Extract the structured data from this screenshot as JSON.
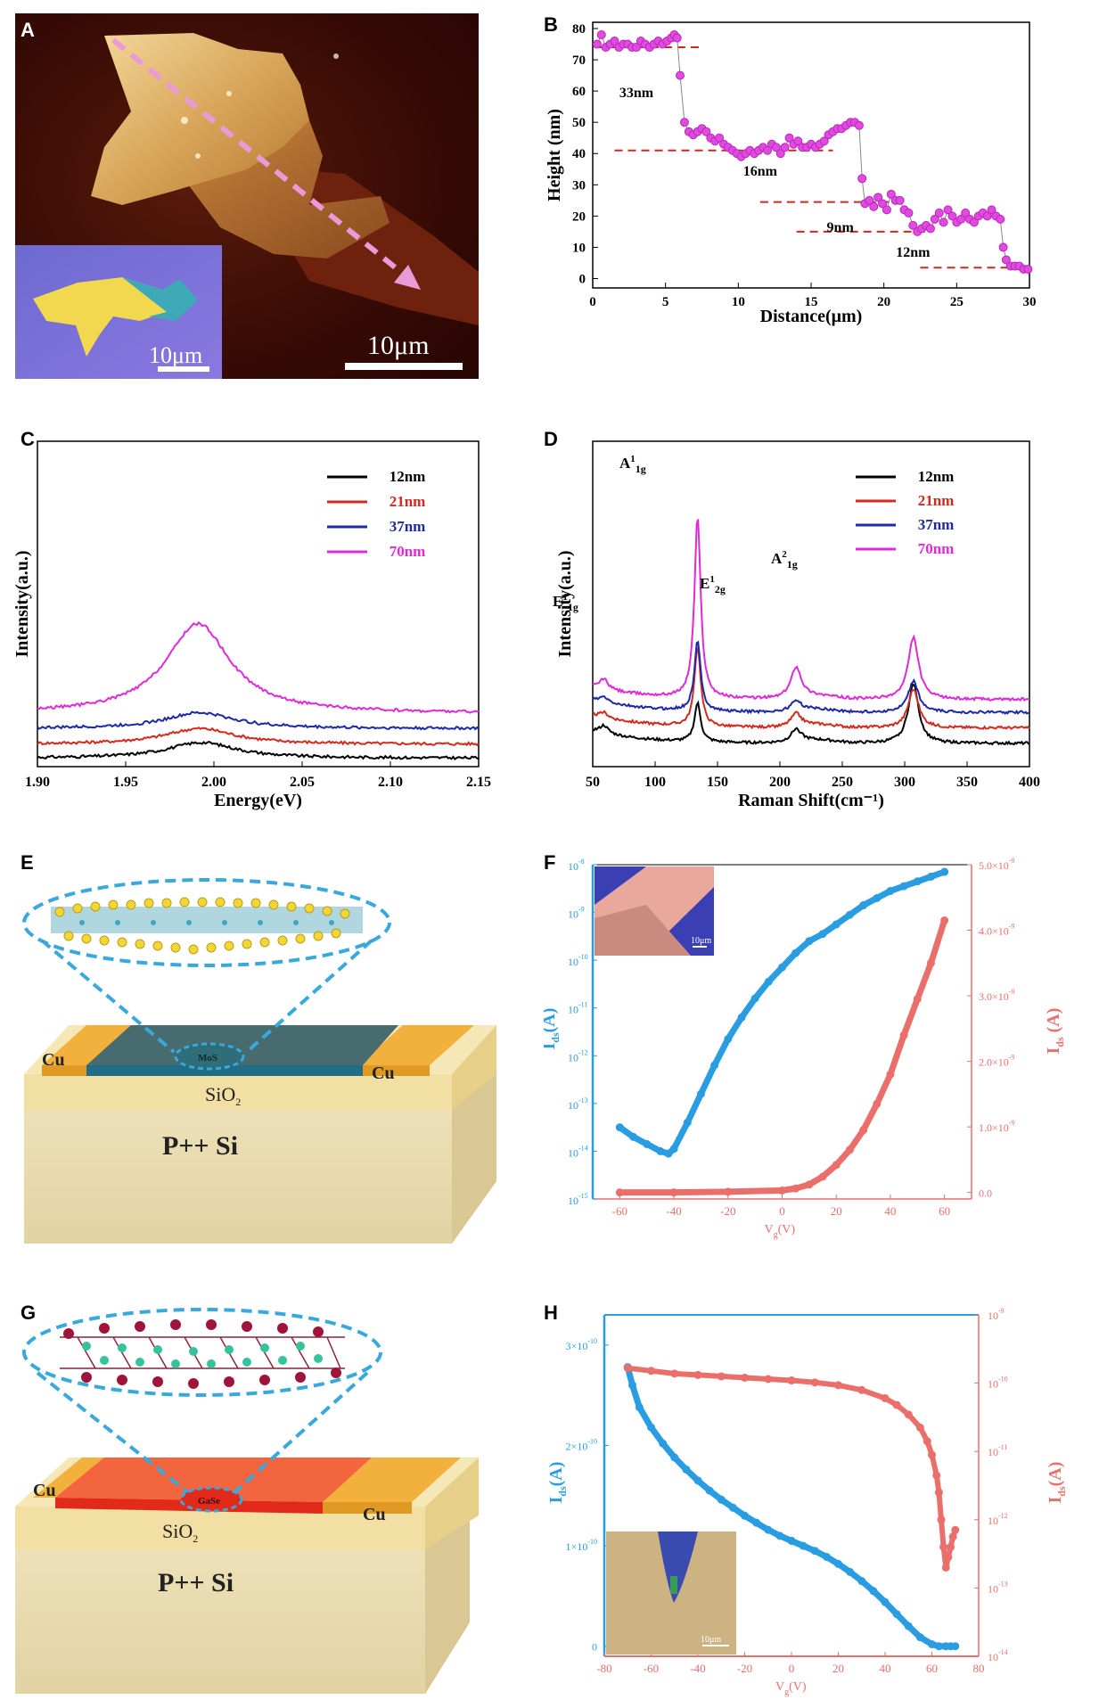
{
  "panels": {
    "A": {
      "label": "A",
      "inset_scale": "10μm",
      "main_scale": "10μm"
    },
    "B": {
      "label": "B",
      "annotations": [
        "33nm",
        "16nm",
        "9nm",
        "12nm"
      ]
    },
    "C": {
      "label": "C"
    },
    "D": {
      "label": "D",
      "peaks": [
        {
          "base": "E",
          "sup": "1",
          "sub": "1g"
        },
        {
          "base": "A",
          "sup": "1",
          "sub": "1g"
        },
        {
          "base": "E",
          "sup": "1",
          "sub": "2g"
        },
        {
          "base": "A",
          "sup": "2",
          "sub": "1g"
        }
      ]
    },
    "E": {
      "label": "E",
      "electrode_left": "Cu",
      "electrode_right": "Cu",
      "channel": "MoS",
      "oxide_base": "SiO",
      "oxide_sub": "2",
      "substrate": "P++ Si",
      "colors": {
        "channel": "#2f6d78",
        "electrode": "#f2b13c"
      }
    },
    "F": {
      "label": "F",
      "inset_scale": "10μm",
      "left_ylabel": {
        "base": "I",
        "sub": "ds",
        "rest": "(A)"
      },
      "right_ylabel": {
        "base": "I",
        "sub": "ds",
        "rest": " (A)"
      },
      "xlabel": {
        "base": "V",
        "sub": "g",
        "rest": "(V)"
      },
      "left_ticks": [
        {
          "mant": "10",
          "exp": "-8"
        },
        {
          "mant": "10",
          "exp": "-9"
        },
        {
          "mant": "10",
          "exp": "-10"
        },
        {
          "mant": "10",
          "exp": "-11"
        },
        {
          "mant": "10",
          "exp": "-12"
        },
        {
          "mant": "10",
          "exp": "-13"
        },
        {
          "mant": "10",
          "exp": "-14"
        },
        {
          "mant": "10",
          "exp": "-15"
        }
      ],
      "right_ticks": [
        {
          "mant": "5.0×10",
          "exp": "-9"
        },
        {
          "mant": "4.0×10",
          "exp": "-9"
        },
        {
          "mant": "3.0×10",
          "exp": "-9"
        },
        {
          "mant": "2.0×10",
          "exp": "-9"
        },
        {
          "mant": "1.0×10",
          "exp": "-9"
        },
        {
          "mant": "0.0",
          "exp": ""
        }
      ],
      "colors": {
        "blue": "#2a9de2",
        "red": "#ea6f6b"
      }
    },
    "G": {
      "label": "G",
      "electrode_left": "Cu",
      "electrode_right": "Cu",
      "channel": "GaSe",
      "oxide_base": "SiO",
      "oxide_sub": "2",
      "substrate": "P++ Si",
      "colors": {
        "channel": "#f2653e",
        "electrode": "#f2b13c"
      }
    },
    "H": {
      "label": "H",
      "inset_scale": "10μm",
      "left_ylabel": {
        "base": "I",
        "sub": "ds",
        "rest": "(A)"
      },
      "right_ylabel": {
        "base": "I",
        "sub": "ds",
        "rest": "(A)"
      },
      "xlabel": {
        "base": "V",
        "sub": "g",
        "rest": "(V)"
      },
      "left_ticks": [
        {
          "mant": "3×10",
          "exp": "-10"
        },
        {
          "mant": "2×10",
          "exp": "-10"
        },
        {
          "mant": "1×10",
          "exp": "-10"
        },
        {
          "mant": "0",
          "exp": ""
        }
      ],
      "right_ticks": [
        {
          "mant": "10",
          "exp": "-9"
        },
        {
          "mant": "10",
          "exp": "-10"
        },
        {
          "mant": "10",
          "exp": "-11"
        },
        {
          "mant": "10",
          "exp": "-12"
        },
        {
          "mant": "10",
          "exp": "-13"
        },
        {
          "mant": "10",
          "exp": "-14"
        }
      ]
    }
  },
  "chart_data": [
    {
      "id": "B",
      "type": "scatter",
      "title": "",
      "xlabel": "Distance(μm)",
      "ylabel": "Height (nm)",
      "xlim": [
        0,
        30
      ],
      "ylim": [
        -3,
        82
      ],
      "xticks": [
        0,
        5,
        10,
        15,
        20,
        25,
        30
      ],
      "yticks": [
        0,
        10,
        20,
        30,
        40,
        50,
        60,
        70,
        80
      ],
      "series": [
        {
          "name": "height",
          "x": [
            0.3,
            0.6,
            0.9,
            1.2,
            1.5,
            1.8,
            2.1,
            2.4,
            2.7,
            3.0,
            3.3,
            3.6,
            3.9,
            4.2,
            4.5,
            4.8,
            5.1,
            5.4,
            5.6,
            5.8,
            6.0,
            6.3,
            6.6,
            6.9,
            7.2,
            7.5,
            7.8,
            8.1,
            8.4,
            8.7,
            9.0,
            9.3,
            9.6,
            9.9,
            10.2,
            10.5,
            10.8,
            11.1,
            11.4,
            11.7,
            12.0,
            12.3,
            12.6,
            12.9,
            13.2,
            13.5,
            13.8,
            14.1,
            14.4,
            14.7,
            15.0,
            15.3,
            15.6,
            15.9,
            16.2,
            16.5,
            16.8,
            17.1,
            17.4,
            17.7,
            18.0,
            18.3,
            18.5,
            18.7,
            19.0,
            19.3,
            19.6,
            19.9,
            20.2,
            20.5,
            20.8,
            21.1,
            21.4,
            21.7,
            22.0,
            22.3,
            22.6,
            22.9,
            23.2,
            23.5,
            23.8,
            24.1,
            24.4,
            24.7,
            25.0,
            25.3,
            25.6,
            25.9,
            26.2,
            26.5,
            26.8,
            27.1,
            27.4,
            27.7,
            28.0,
            28.2,
            28.4,
            28.7,
            29.0,
            29.3,
            29.6,
            29.9
          ],
          "y": [
            75,
            78,
            74,
            75,
            76,
            74,
            75,
            75,
            74,
            74,
            76,
            75,
            74,
            75,
            76,
            75,
            76,
            77,
            78,
            77,
            65,
            50,
            47,
            46,
            47,
            48,
            47,
            45,
            44,
            45,
            43,
            42,
            41,
            40,
            39,
            40,
            41,
            40,
            41,
            42,
            41,
            43,
            42,
            40,
            42,
            45,
            43,
            44,
            42,
            42,
            43,
            42,
            43,
            44,
            46,
            47,
            48,
            48,
            49,
            50,
            50,
            49,
            32,
            24,
            25,
            23,
            26,
            24,
            22,
            27,
            25,
            25,
            22,
            21,
            17,
            15,
            16,
            17,
            16,
            19,
            21,
            18,
            22,
            20,
            18,
            19,
            21,
            19,
            18,
            20,
            21,
            20,
            22,
            20,
            19,
            10,
            6,
            4,
            4,
            4,
            3,
            3
          ]
        }
      ],
      "reference_lines": [
        74,
        41,
        24.5,
        15,
        3.5
      ],
      "annotations": [
        "33nm",
        "16nm",
        "9nm",
        "12nm"
      ]
    },
    {
      "id": "C",
      "type": "line",
      "xlabel": "Energy(eV)",
      "ylabel": "Intensity(a.u.)",
      "xlim": [
        1.9,
        2.15
      ],
      "xticks": [
        "1.90",
        "1.95",
        "2.00",
        "2.05",
        "2.10",
        "2.15"
      ],
      "ylim": [
        0,
        5.8
      ],
      "series": [
        {
          "name": "12nm",
          "color": "#000000",
          "baseline": 0.15,
          "amplitude": 0.28,
          "center": 1.993,
          "width": 0.024
        },
        {
          "name": "21nm",
          "color": "#d42a1e",
          "baseline": 0.4,
          "amplitude": 0.28,
          "center": 1.992,
          "width": 0.024
        },
        {
          "name": "37nm",
          "color": "#1c2aa8",
          "baseline": 0.68,
          "amplitude": 0.28,
          "center": 1.992,
          "width": 0.024
        },
        {
          "name": "70nm",
          "color": "#e02ad8",
          "baseline": 0.95,
          "amplitude": 1.6,
          "center": 1.991,
          "width": 0.022
        }
      ]
    },
    {
      "id": "D",
      "type": "line",
      "xlabel": "Raman Shift(cm⁻¹)",
      "ylabel": "Intensity(a.u.)",
      "xlim": [
        50,
        400
      ],
      "xticks": [
        50,
        100,
        150,
        200,
        250,
        300,
        350,
        400
      ],
      "ylim": [
        0,
        6.3
      ],
      "peak_positions_cm": [
        59,
        134,
        213,
        307
      ],
      "series": [
        {
          "name": "12nm",
          "color": "#000000",
          "baseline": 0.45,
          "peaks": [
            0.15,
            0.75,
            0.25,
            1.15
          ]
        },
        {
          "name": "21nm",
          "color": "#d42a1e",
          "baseline": 0.75,
          "peaks": [
            0.1,
            1.55,
            0.25,
            0.75
          ]
        },
        {
          "name": "37nm",
          "color": "#1c2aa8",
          "baseline": 1.05,
          "peaks": [
            0.1,
            1.35,
            0.2,
            0.6
          ]
        },
        {
          "name": "70nm",
          "color": "#e02ad8",
          "baseline": 1.3,
          "peaks": [
            0.2,
            3.5,
            0.6,
            1.2
          ]
        }
      ]
    },
    {
      "id": "F",
      "type": "line",
      "xlabel": "Vg(V)",
      "xlim": [
        -70,
        70
      ],
      "xticks": [
        -60,
        -40,
        -20,
        0,
        20,
        40,
        60
      ],
      "series": [
        {
          "name": "Ids log (left axis)",
          "axis": "left",
          "color": "#2a9de2",
          "x": [
            -60,
            -55,
            -50,
            -45,
            -42,
            -40,
            -35,
            -30,
            -25,
            -20,
            -15,
            -10,
            -5,
            0,
            5,
            10,
            15,
            20,
            25,
            30,
            35,
            40,
            45,
            50,
            55,
            60
          ],
          "log10_y": [
            -13.5,
            -13.7,
            -13.85,
            -14.0,
            -14.05,
            -13.95,
            -13.4,
            -12.8,
            -12.2,
            -11.65,
            -11.2,
            -10.8,
            -10.45,
            -10.15,
            -9.85,
            -9.6,
            -9.45,
            -9.25,
            -9.05,
            -8.85,
            -8.7,
            -8.55,
            -8.45,
            -8.35,
            -8.25,
            -8.15
          ]
        },
        {
          "name": "Ids linear (right axis)",
          "axis": "right",
          "color": "#ea6f6b",
          "x": [
            -60,
            -40,
            -20,
            0,
            5,
            10,
            15,
            20,
            25,
            30,
            35,
            40,
            45,
            50,
            55,
            60
          ],
          "y": [
            0,
            0,
            1e-11,
            3e-11,
            6e-11,
            1.2e-10,
            2.4e-10,
            4.2e-10,
            6.5e-10,
            9.5e-10,
            1.35e-09,
            1.8e-09,
            2.4e-09,
            2.95e-09,
            3.5e-09,
            4.15e-09
          ]
        }
      ],
      "left_ylim_log10": [
        -15,
        -8
      ],
      "right_ylim": [
        -1e-10,
        5e-09
      ]
    },
    {
      "id": "H",
      "type": "line",
      "xlabel": "Vg(V)",
      "xlim": [
        -80,
        80
      ],
      "xticks": [
        -80,
        -60,
        -40,
        -20,
        0,
        20,
        40,
        60,
        80
      ],
      "series": [
        {
          "name": "Ids linear (left axis)",
          "axis": "left",
          "color": "#2a9de2",
          "x": [
            -70,
            -68,
            -65,
            -60,
            -55,
            -50,
            -45,
            -40,
            -35,
            -30,
            -25,
            -20,
            -15,
            -10,
            -5,
            0,
            5,
            10,
            15,
            20,
            25,
            30,
            35,
            40,
            45,
            50,
            55,
            60,
            63,
            66,
            68,
            70
          ],
          "y": [
            2.78e-10,
            2.6e-10,
            2.38e-10,
            2.18e-10,
            2.02e-10,
            1.88e-10,
            1.76e-10,
            1.65e-10,
            1.55e-10,
            1.46e-10,
            1.38e-10,
            1.3e-10,
            1.23e-10,
            1.16e-10,
            1.1e-10,
            1.05e-10,
            1e-10,
            9.5e-11,
            8.9e-11,
            8.2e-11,
            7.4e-11,
            6.5e-11,
            5.5e-11,
            4.4e-11,
            3.2e-11,
            2e-11,
            9e-12,
            2e-12,
            0.0,
            0.0,
            0.0,
            0.0
          ]
        },
        {
          "name": "Ids log (right axis)",
          "axis": "right",
          "color": "#ea6f6b",
          "x": [
            -70,
            -60,
            -50,
            -40,
            -30,
            -20,
            -10,
            0,
            10,
            20,
            30,
            40,
            45,
            50,
            55,
            58,
            60,
            62,
            63,
            64,
            65,
            66,
            67,
            68,
            69,
            70
          ],
          "log10_y": [
            -9.78,
            -9.82,
            -9.86,
            -9.88,
            -9.9,
            -9.92,
            -9.94,
            -9.96,
            -9.99,
            -10.03,
            -10.1,
            -10.22,
            -10.32,
            -10.46,
            -10.65,
            -10.85,
            -11.05,
            -11.35,
            -11.6,
            -12.0,
            -12.4,
            -12.7,
            -12.55,
            -12.4,
            -12.25,
            -12.15
          ]
        }
      ],
      "left_ylim": [
        -1e-11,
        3.3e-10
      ],
      "right_ylim_log10": [
        -14,
        -9
      ]
    }
  ]
}
